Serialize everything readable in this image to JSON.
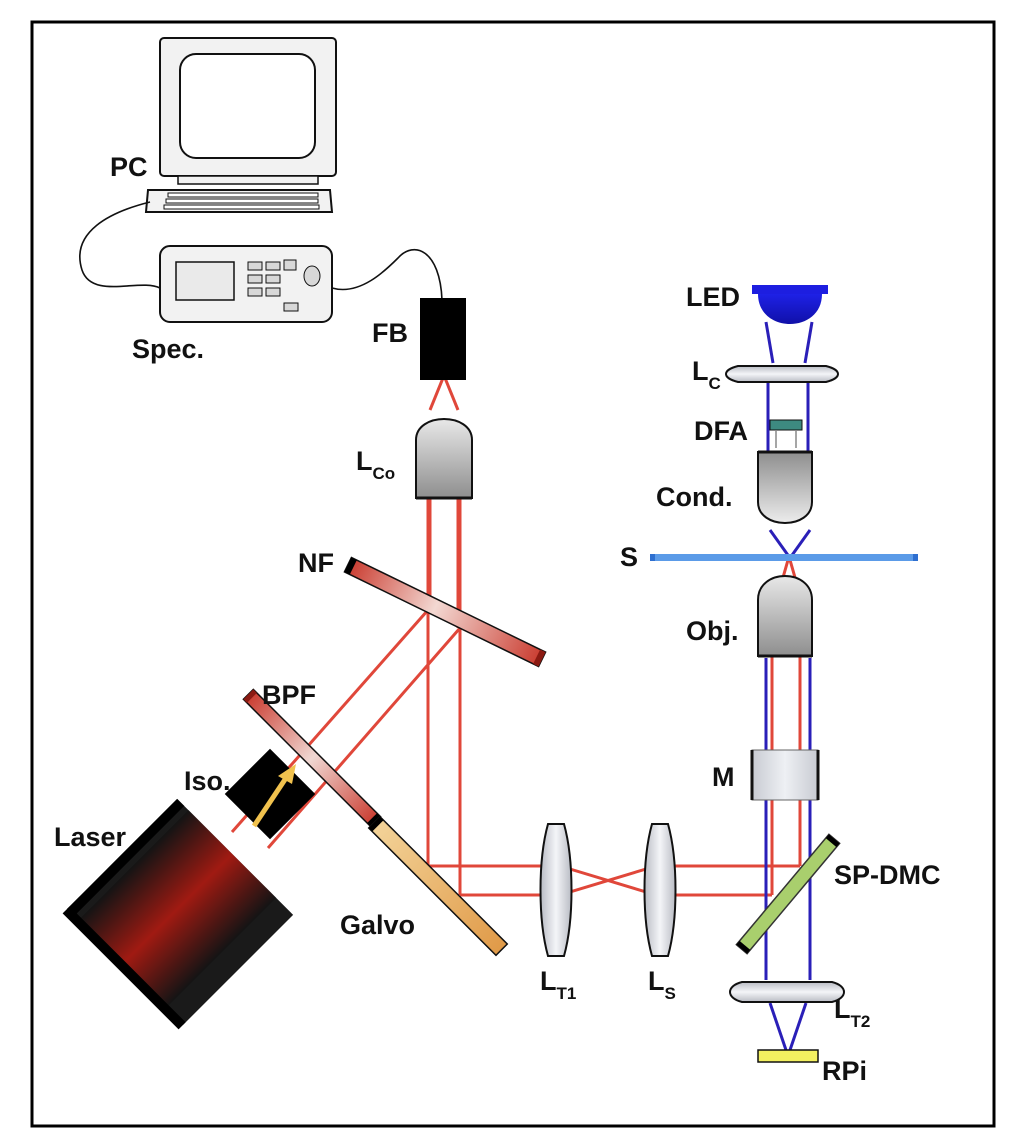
{
  "labels": {
    "pc": "PC",
    "spec": "Spec.",
    "fb": "FB",
    "lco_main": "L",
    "lco_sub": "Co",
    "nf": "NF",
    "bpf": "BPF",
    "iso": "Iso.",
    "laser": "Laser",
    "galvo": "Galvo",
    "lt1_main": "L",
    "lt1_sub": "T1",
    "ls_main": "L",
    "ls_sub": "S",
    "led": "LED",
    "lc_main": "L",
    "lc_sub": "C",
    "dfa": "DFA",
    "cond": "Cond.",
    "s": "S",
    "obj": "Obj.",
    "m": "M",
    "spdmc": "SP-DMC",
    "lt2_main": "L",
    "lt2_sub": "T2",
    "rpi": "RPi"
  },
  "colors": {
    "laser_beam": "#e0473a",
    "led_beam": "#2a1fb8",
    "frame": "#000000",
    "sample": "#5b9be8",
    "led": "#1d1ee0",
    "dichroic": "#a9cf6d",
    "galvo": "#e8b060",
    "rpi": "#f3f060",
    "arrow": "#f1c24e"
  },
  "icons": {
    "arrow": "isolator-arrow-icon",
    "computer": "computer-icon",
    "spectrometer": "spectrometer-icon"
  }
}
